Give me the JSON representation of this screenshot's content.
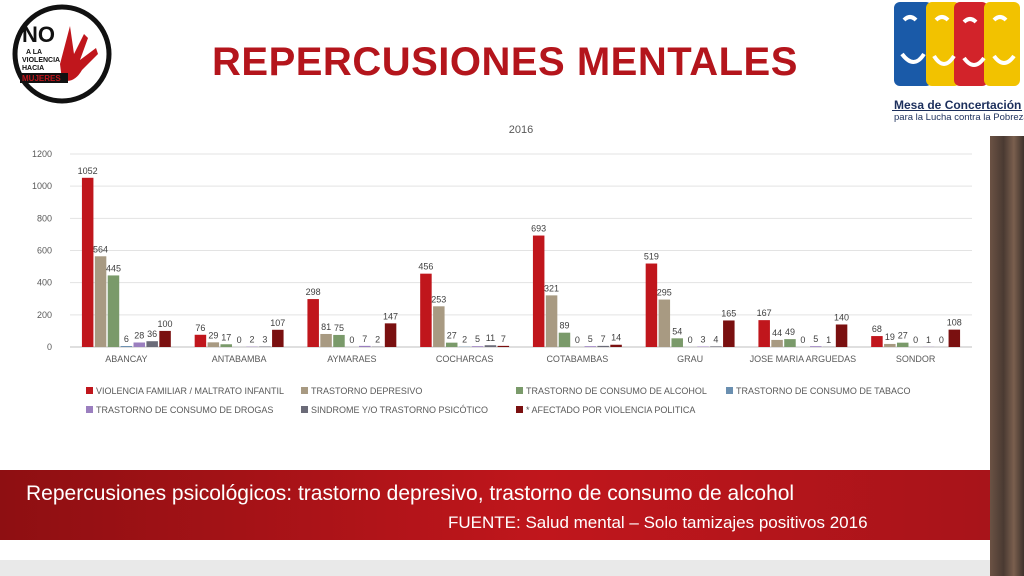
{
  "slide": {
    "title": "REPERCUSIONES MENTALES",
    "subtitle": "Repercusiones psicológicos: trastorno depresivo, trastorno de consumo de alcohol",
    "source": "FUENTE: Salud mental – Solo tamizajes positivos 2016"
  },
  "logos": {
    "left_badge": {
      "no": "NO",
      "lines": [
        "A LA",
        "VIOLENCIA",
        "HACIA"
      ],
      "highlight": "MUJERES"
    },
    "right_org": {
      "line1": "Mesa de Concertación",
      "line2": "para la Lucha contra la Pobreza"
    }
  },
  "colors": {
    "accent": "#b4151c",
    "series": [
      "#c0161c",
      "#a89a82",
      "#7a9a6a",
      "#6a8fb0",
      "#9b7fbf",
      "#6b6b78",
      "#7a1010"
    ]
  },
  "chart_data": {
    "type": "bar",
    "title": "2016",
    "categories": [
      "ABANCAY",
      "ANTABAMBA",
      "AYMARAES",
      "COCHARCAS",
      "COTABAMBAS",
      "GRAU",
      "JOSE MARIA ARGUEDAS",
      "SONDOR"
    ],
    "ylim": [
      0,
      1200
    ],
    "yticks": [
      0,
      200,
      400,
      600,
      800,
      1000,
      1200
    ],
    "grid": true,
    "legend_position": "bottom",
    "series": [
      {
        "name": "VIOLENCIA FAMILIAR / MALTRATO INFANTIL",
        "values": [
          1052,
          76,
          298,
          456,
          693,
          519,
          167,
          68
        ]
      },
      {
        "name": "TRASTORNO DEPRESIVO",
        "values": [
          564,
          29,
          81,
          253,
          321,
          295,
          44,
          19
        ]
      },
      {
        "name": "TRASTORNO DE CONSUMO DE ALCOHOL",
        "values": [
          445,
          17,
          75,
          27,
          89,
          54,
          49,
          27
        ]
      },
      {
        "name": "TRASTORNO DE CONSUMO DE TABACO",
        "values": [
          6,
          0,
          0,
          2,
          0,
          0,
          0,
          0
        ]
      },
      {
        "name": "TRASTORNO DE CONSUMO DE DROGAS",
        "values": [
          28,
          2,
          7,
          5,
          5,
          3,
          5,
          1
        ]
      },
      {
        "name": "SINDROME Y/O TRASTORNO PSICÓTICO",
        "values": [
          36,
          3,
          2,
          11,
          7,
          4,
          1,
          0
        ]
      },
      {
        "name": "* AFECTADO POR VIOLENCIA POLITICA",
        "values": [
          100,
          107,
          147,
          7,
          14,
          165,
          140,
          108
        ]
      }
    ]
  }
}
